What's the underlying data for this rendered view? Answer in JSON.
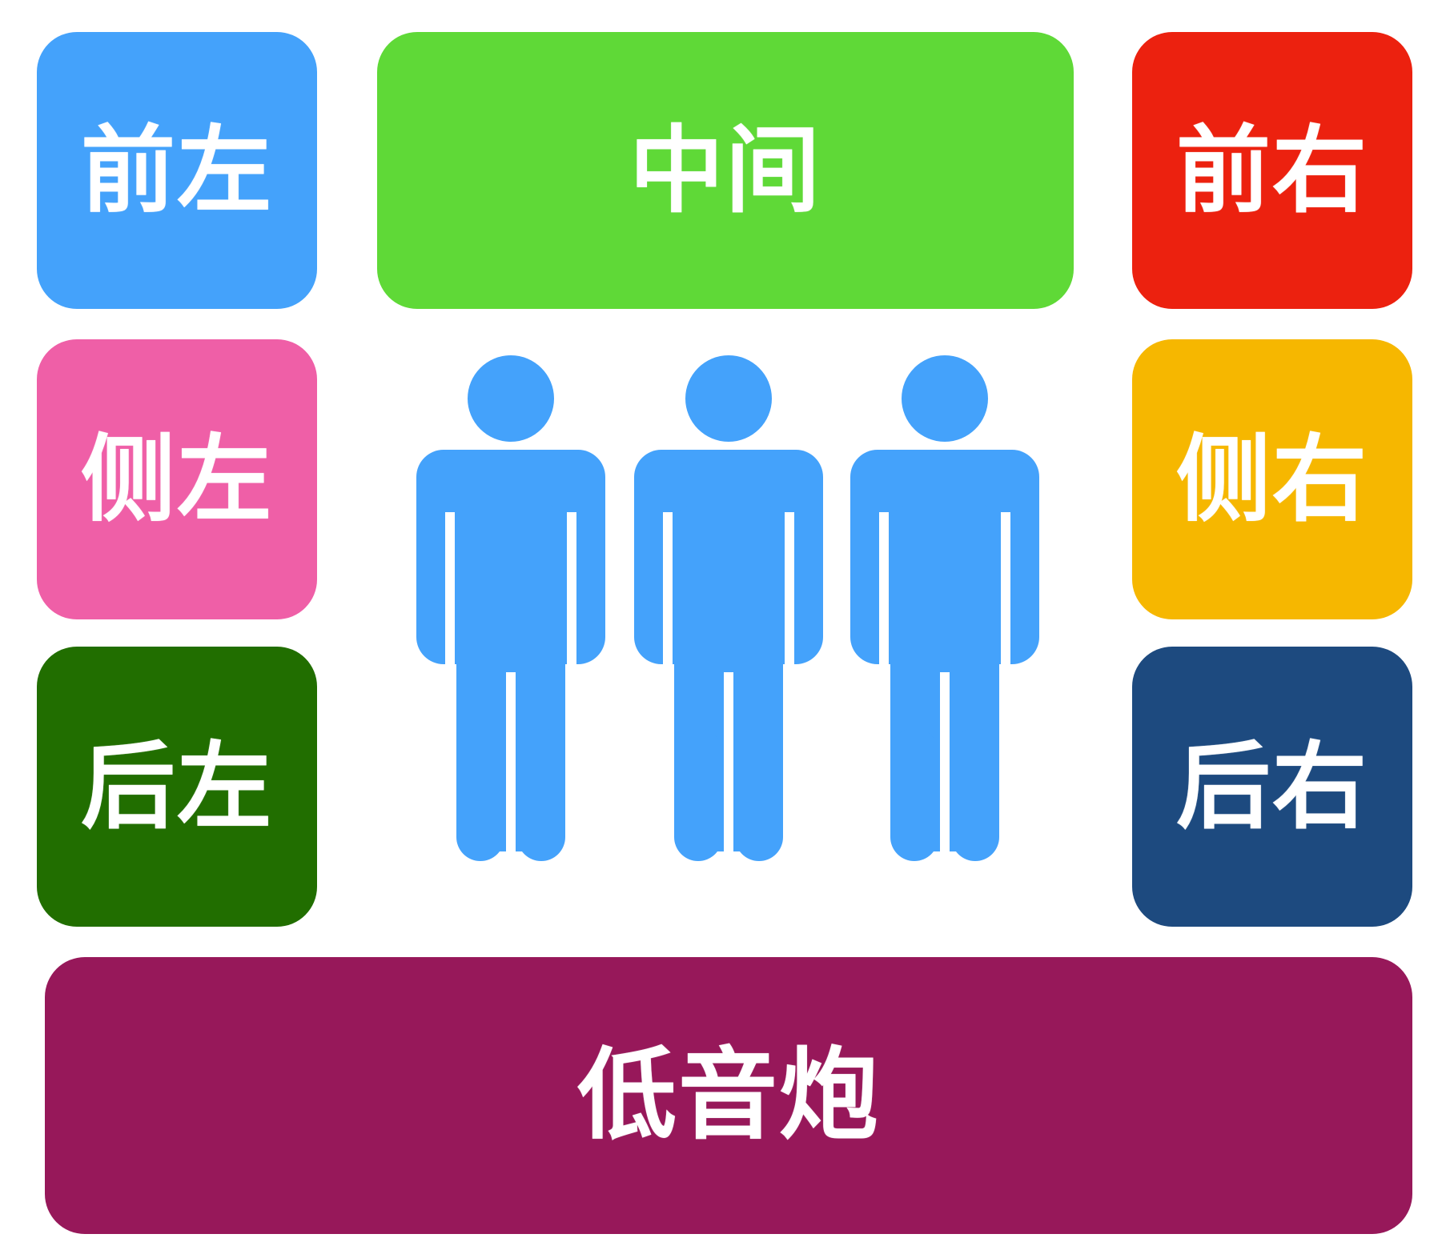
{
  "speakers": {
    "front_left": {
      "label": "前左",
      "color": "#44a2fb"
    },
    "center": {
      "label": "中间",
      "color": "#5fd937"
    },
    "front_right": {
      "label": "前右",
      "color": "#ec210f"
    },
    "side_left": {
      "label": "侧左",
      "color": "#ef5fa7"
    },
    "side_right": {
      "label": "侧右",
      "color": "#f6b700"
    },
    "rear_left": {
      "label": "后左",
      "color": "#216e00"
    },
    "rear_right": {
      "label": "后右",
      "color": "#1d4a7f"
    },
    "subwoofer": {
      "label": "低音炮",
      "color": "#97185a"
    }
  },
  "listeners": {
    "count": 3,
    "icon": "person-icon",
    "color": "#44a2fb"
  }
}
